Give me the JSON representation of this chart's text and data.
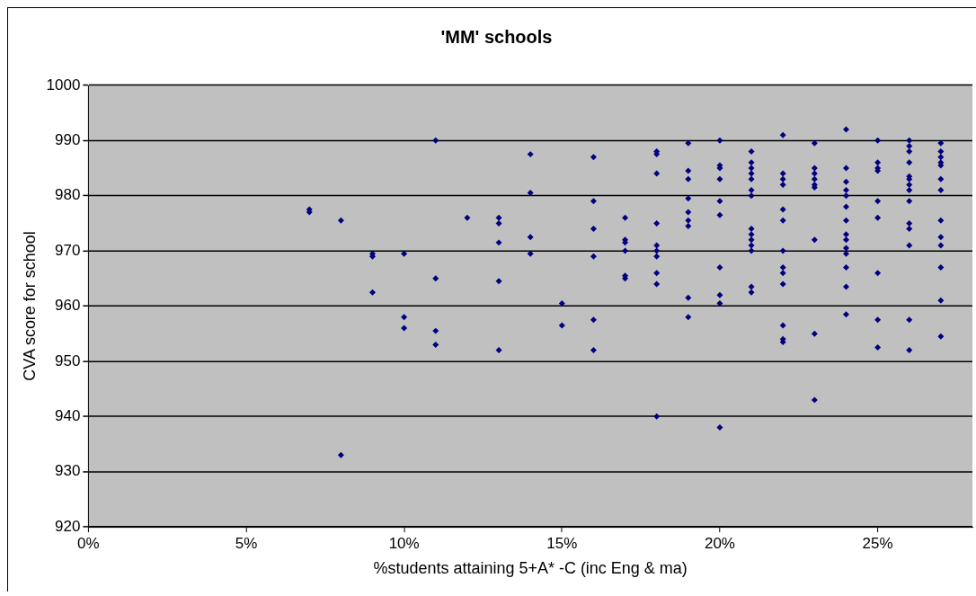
{
  "chart_data": {
    "type": "scatter",
    "title": "'MM' schools",
    "xlabel": "%students attaining 5+A* -C (inc Eng & ma)",
    "ylabel": "CVA score for school",
    "xlim": [
      0,
      28
    ],
    "xticks": [
      {
        "value": 0,
        "label": "0%"
      },
      {
        "value": 5,
        "label": "5%"
      },
      {
        "value": 10,
        "label": "10%"
      },
      {
        "value": 15,
        "label": "15%"
      },
      {
        "value": 20,
        "label": "20%"
      },
      {
        "value": 25,
        "label": "25%"
      }
    ],
    "ylim": [
      920,
      1000
    ],
    "yticks": [
      920,
      930,
      940,
      950,
      960,
      970,
      980,
      990,
      1000
    ],
    "grid": "y",
    "marker": "diamond",
    "series": [
      {
        "color": "#000080",
        "x": [
          7,
          7,
          8,
          8,
          9,
          9,
          9,
          10,
          10,
          10,
          11,
          11,
          11,
          11,
          12,
          13,
          13,
          13,
          13,
          13,
          14,
          14,
          14,
          14,
          15,
          15,
          16,
          16,
          16,
          16,
          16,
          16,
          17,
          17,
          17,
          17,
          17,
          17,
          18,
          18,
          18,
          18,
          18,
          18,
          18,
          18,
          18,
          18,
          19,
          19,
          19,
          19,
          19,
          19,
          19,
          19,
          19,
          20,
          20,
          20,
          20,
          20,
          20,
          20,
          20,
          20,
          20,
          21,
          21,
          21,
          21,
          21,
          21,
          21,
          21,
          21,
          21,
          21,
          21,
          21,
          21,
          22,
          22,
          22,
          22,
          22,
          22,
          22,
          22,
          22,
          22,
          22,
          22,
          22,
          23,
          23,
          23,
          23,
          23,
          23,
          23,
          23,
          23,
          24,
          24,
          24,
          24,
          24,
          24,
          24,
          24,
          24,
          24,
          24,
          24,
          24,
          24,
          25,
          25,
          25,
          25,
          25,
          25,
          25,
          25,
          25,
          26,
          26,
          26,
          26,
          26,
          26,
          26,
          26,
          26,
          26,
          26,
          26,
          26,
          26,
          27,
          27,
          27,
          27,
          27,
          27,
          27,
          27,
          27,
          27,
          27,
          27,
          27
        ],
        "values": [
          977,
          977.5,
          975.5,
          933,
          969.5,
          969,
          962.5,
          969.5,
          958,
          956,
          990,
          965,
          955.5,
          953,
          976,
          976,
          975,
          971.5,
          964.5,
          952,
          987.5,
          980.5,
          972.5,
          969.5,
          960.5,
          956.5,
          987,
          979,
          974,
          969,
          957.5,
          952,
          976,
          972,
          971.5,
          970,
          965.5,
          965,
          988,
          987.5,
          984,
          975,
          971,
          970,
          969,
          966,
          964,
          940,
          989.5,
          984.5,
          983,
          979.5,
          977,
          975.5,
          974.5,
          961.5,
          958,
          990,
          985.5,
          985,
          983,
          979,
          976.5,
          967,
          962,
          960.5,
          938,
          988,
          986,
          985,
          984,
          983,
          981,
          980,
          974,
          973,
          972,
          971,
          970,
          963.5,
          962.5,
          991,
          984,
          983,
          982,
          977.5,
          975.5,
          970,
          967,
          966,
          964,
          956.5,
          954,
          953.5,
          989.5,
          985,
          984,
          983,
          982,
          981.5,
          972,
          955,
          943,
          992,
          985,
          982.5,
          981,
          980,
          978,
          975.5,
          973,
          972,
          970.5,
          969.5,
          967,
          963.5,
          958.5,
          990,
          986,
          985,
          984.5,
          979,
          976,
          966,
          957.5,
          952.5,
          990,
          989,
          988,
          986,
          983.5,
          983,
          982,
          981,
          979,
          975,
          974,
          971,
          957.5,
          952,
          989.5,
          988,
          987,
          986,
          985.5,
          983,
          981,
          975.5,
          972.5,
          971,
          967,
          961,
          954.5
        ]
      }
    ]
  }
}
